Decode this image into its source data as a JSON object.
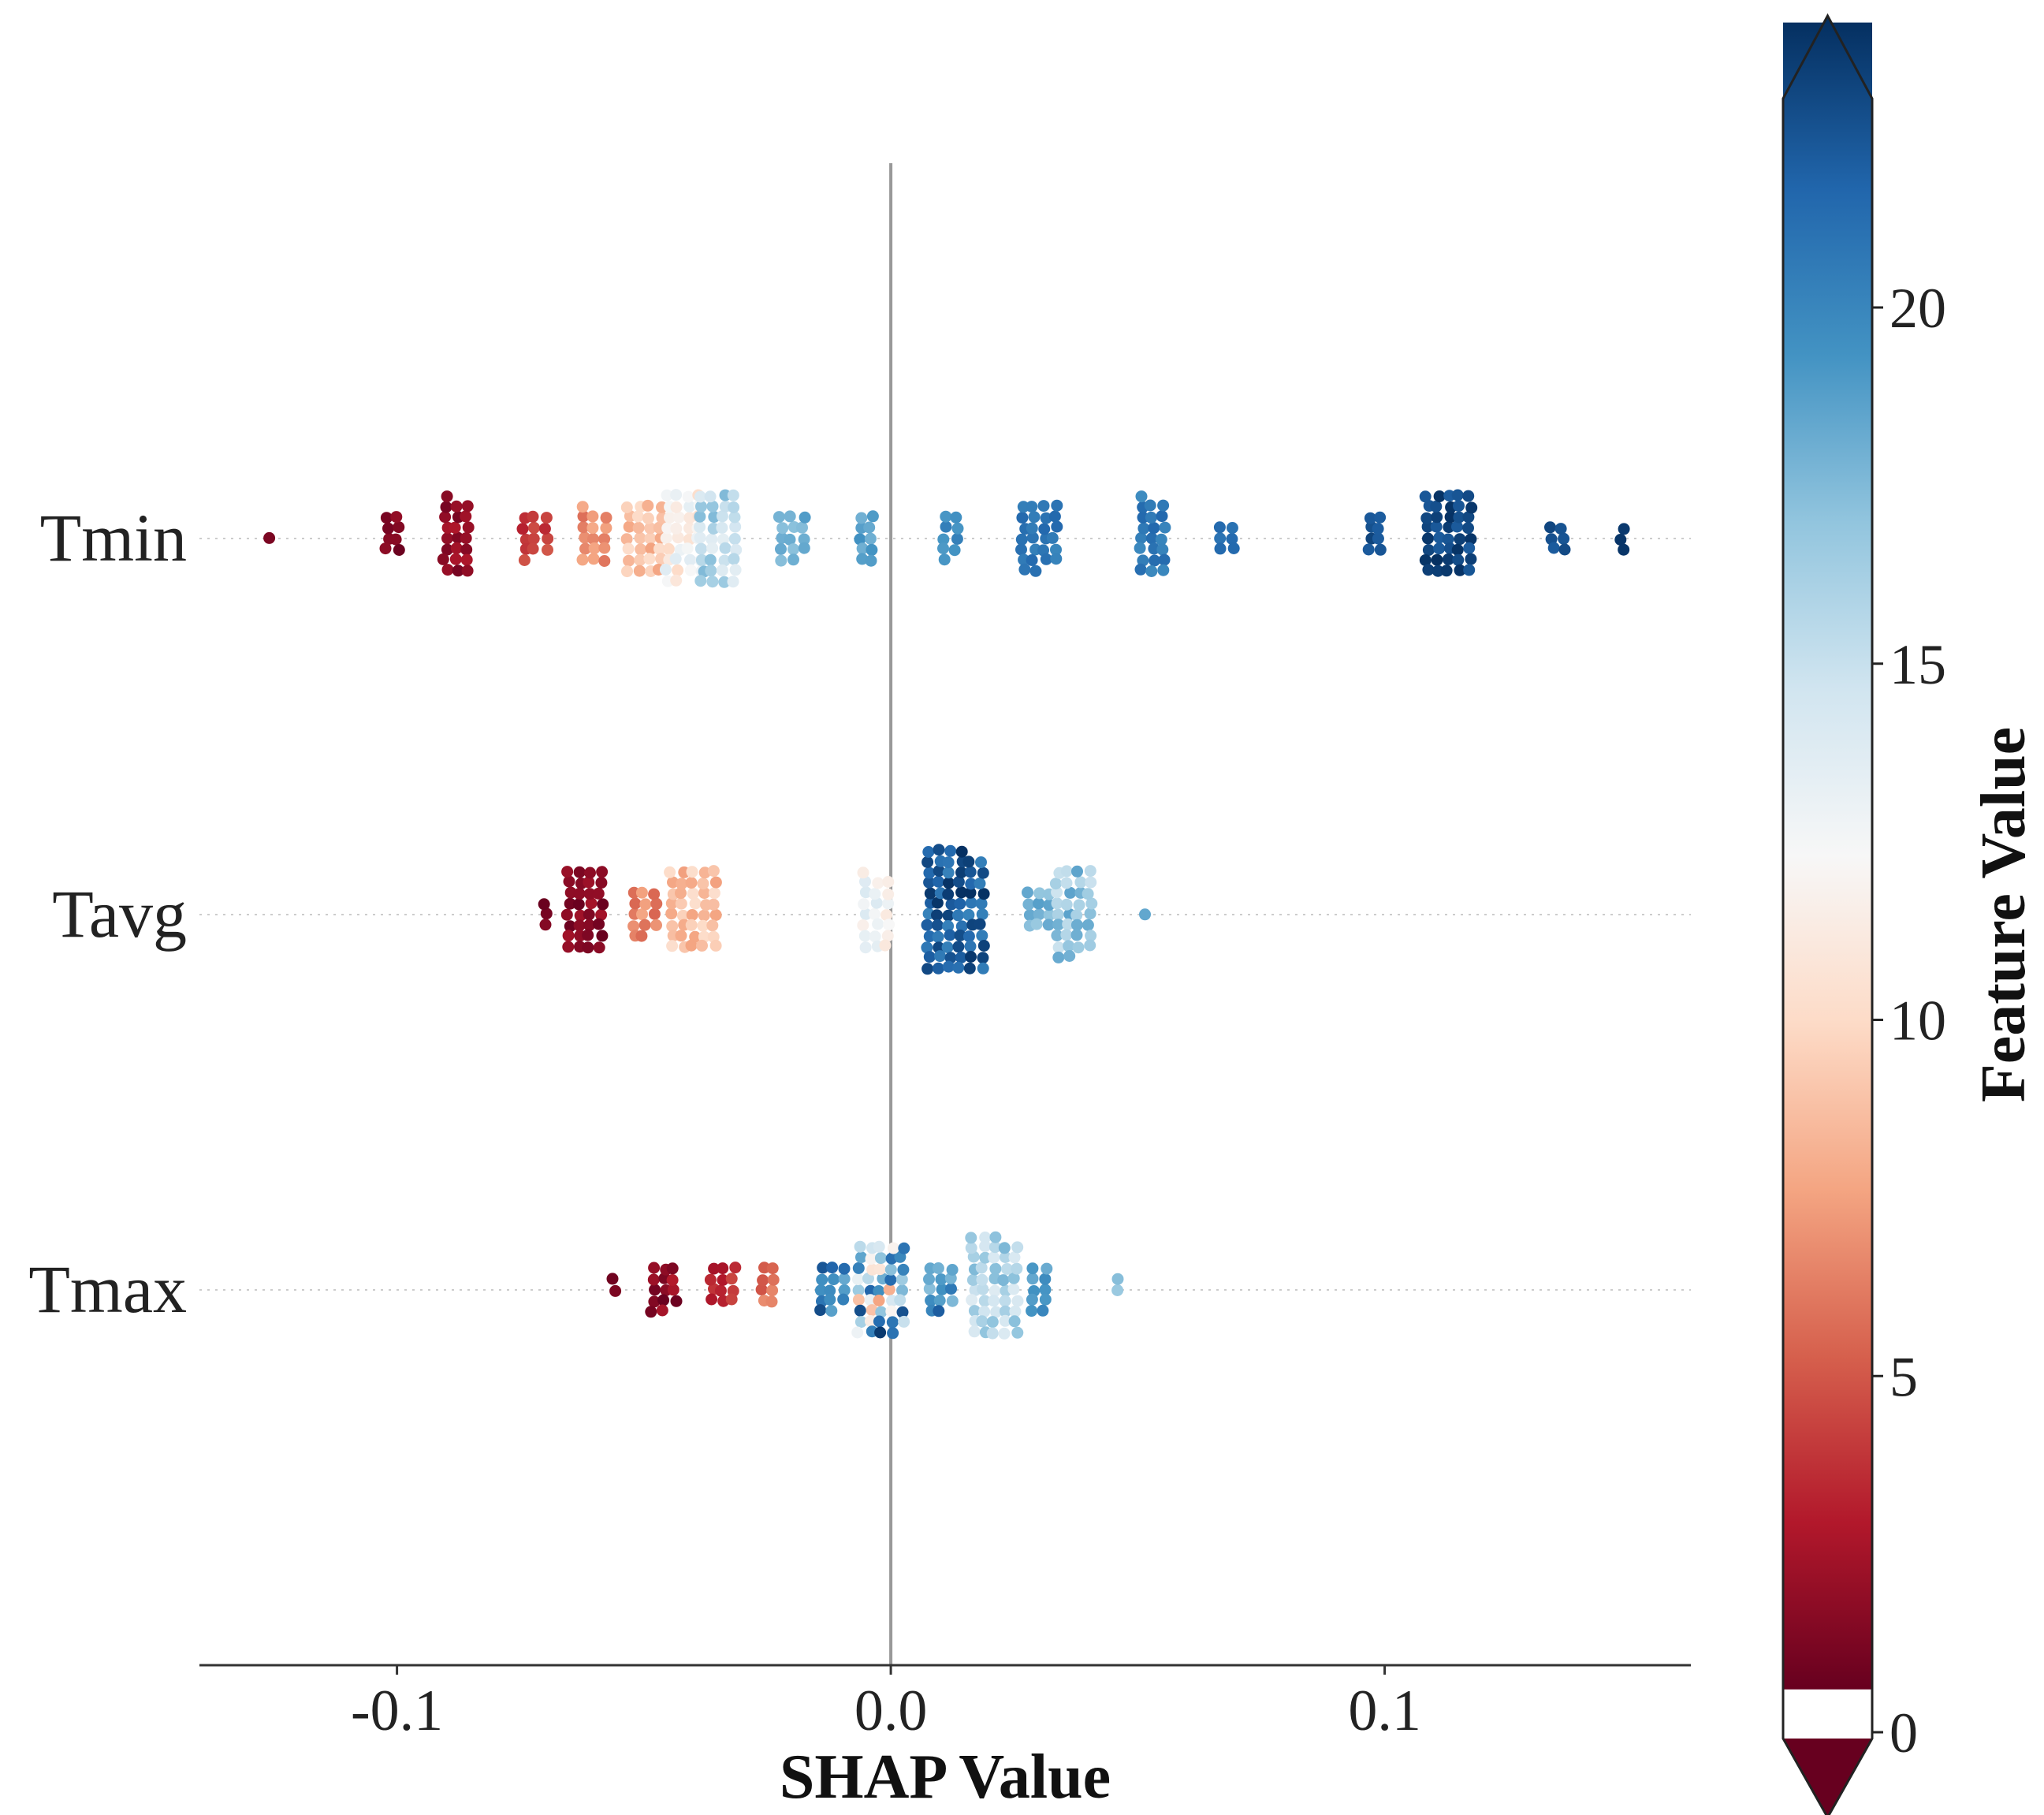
{
  "chart_data": {
    "type": "scatter",
    "subtype": "shap-beeswarm",
    "xlabel": "SHAP Value",
    "x_ticks": [
      -0.1,
      0.0,
      0.1
    ],
    "x_tick_labels": [
      "-0.1",
      "0.0",
      "0.1"
    ],
    "xlim": [
      -0.14,
      0.162
    ],
    "zero_line": true,
    "grid": false,
    "features": [
      "Tmin",
      "Tavg",
      "Tmax"
    ],
    "colorbar": {
      "label": "Feature Value",
      "ticks": [
        0,
        5,
        10,
        15,
        20
      ],
      "tick_labels": [
        "0",
        "5",
        "10",
        "15",
        "20"
      ],
      "range": [
        0,
        24
      ],
      "under_color": "#67001f",
      "over_color": "#053061",
      "colormap": "RdBu",
      "colormap_stops": [
        "#67001f",
        "#b2182b",
        "#d6604d",
        "#f4a582",
        "#fddbc7",
        "#f7f7f7",
        "#d1e5f0",
        "#92c5de",
        "#4393c3",
        "#2166ac",
        "#053061"
      ]
    },
    "series": [
      {
        "feature": "Tmin",
        "clusters": [
          {
            "x": -0.126,
            "n": 1,
            "v": [
              0,
              1
            ]
          },
          {
            "x": -0.101,
            "n": 8,
            "v": [
              0,
              1.5
            ]
          },
          {
            "x": -0.088,
            "n": 22,
            "v": [
              0.5,
              2.5
            ]
          },
          {
            "x": -0.072,
            "n": 13,
            "v": [
              2.5,
              4.5
            ]
          },
          {
            "x": -0.06,
            "n": 16,
            "v": [
              5,
              7.5
            ]
          },
          {
            "x": -0.05,
            "n": 28,
            "v": [
              7,
              10
            ]
          },
          {
            "x": -0.042,
            "n": 34,
            "v": [
              9.5,
              13.5
            ]
          },
          {
            "x": -0.035,
            "n": 36,
            "v": [
              13,
              17.5
            ]
          },
          {
            "x": -0.02,
            "n": 14,
            "v": [
              17,
              19
            ]
          },
          {
            "x": -0.005,
            "n": 10,
            "v": [
              17.5,
              19.5
            ]
          },
          {
            "x": 0.012,
            "n": 9,
            "v": [
              18.5,
              20.5
            ]
          },
          {
            "x": 0.03,
            "n": 26,
            "v": [
              19.5,
              21.5
            ]
          },
          {
            "x": 0.053,
            "n": 22,
            "v": [
              19.5,
              21.5
            ]
          },
          {
            "x": 0.068,
            "n": 6,
            "v": [
              20.5,
              22
            ]
          },
          {
            "x": 0.098,
            "n": 8,
            "v": [
              22,
              24
            ]
          },
          {
            "x": 0.113,
            "n": 40,
            "v": [
              22,
              24
            ]
          },
          {
            "x": 0.135,
            "n": 6,
            "v": [
              22,
              24
            ]
          },
          {
            "x": 0.148,
            "n": 3,
            "v": [
              23,
              24
            ]
          }
        ]
      },
      {
        "feature": "Tavg",
        "clusters": [
          {
            "x": -0.07,
            "n": 3,
            "v": [
              0,
              1
            ]
          },
          {
            "x": -0.062,
            "n": 32,
            "v": [
              0,
              2
            ]
          },
          {
            "x": -0.05,
            "n": 14,
            "v": [
              5,
              7.5
            ]
          },
          {
            "x": -0.04,
            "n": 40,
            "v": [
              7,
              10
            ]
          },
          {
            "x": -0.003,
            "n": 22,
            "v": [
              10.5,
              14
            ]
          },
          {
            "x": 0.013,
            "n": 70,
            "v": [
              20,
              24
            ]
          },
          {
            "x": 0.03,
            "n": 12,
            "v": [
              16,
              19
            ]
          },
          {
            "x": 0.037,
            "n": 34,
            "v": [
              14.5,
              18.5
            ]
          },
          {
            "x": 0.051,
            "n": 1,
            "v": [
              17.5,
              18.5
            ]
          }
        ]
      },
      {
        "feature": "Tmax",
        "clusters": [
          {
            "x": -0.056,
            "n": 2,
            "v": [
              0,
              1
            ]
          },
          {
            "x": -0.046,
            "n": 14,
            "v": [
              0,
              2.5
            ]
          },
          {
            "x": -0.034,
            "n": 12,
            "v": [
              2,
              4
            ]
          },
          {
            "x": -0.025,
            "n": 8,
            "v": [
              4,
              6.5
            ]
          },
          {
            "x": -0.012,
            "n": 14,
            "v": [
              18,
              23
            ]
          },
          {
            "x": -0.002,
            "n": 44,
            "v": [
              7,
              24
            ]
          },
          {
            "x": 0.01,
            "n": 14,
            "v": [
              17,
              22
            ]
          },
          {
            "x": 0.021,
            "n": 48,
            "v": [
              13.5,
              17.5
            ]
          },
          {
            "x": 0.03,
            "n": 10,
            "v": [
              18,
              20
            ]
          },
          {
            "x": 0.046,
            "n": 2,
            "v": [
              16.5,
              17.5
            ]
          }
        ]
      }
    ]
  }
}
